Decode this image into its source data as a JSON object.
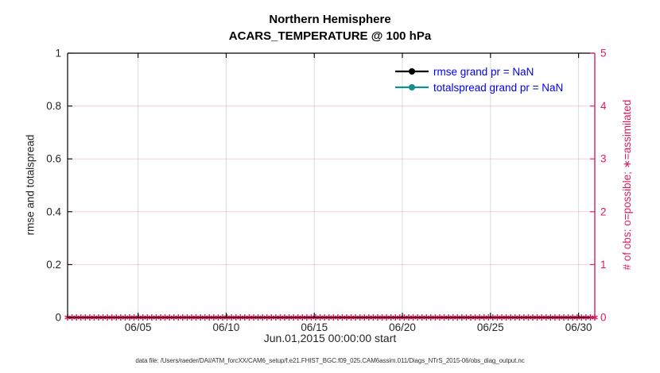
{
  "figure": {
    "title_line1": "Northern Hemisphere",
    "title_line2": "ACARS_TEMPERATURE @ 100 hPa",
    "xlabel": "Jun.01,2015 00:00:00 start",
    "ylabel_left": "rmse and totalspread",
    "ylabel_right": "# of obs: o=possible; ∗=assimilated",
    "caption": "data file: /Users/raeder/DAI/ATM_forcXX/CAM6_setup/f.e21.FHIST_BGC.f09_025.CAM6assim.011/Diags_NTrS_2015-06/obs_diag_output.nc"
  },
  "legend": {
    "text_color": "#0000EE",
    "entries": [
      {
        "label": "rmse grand pr = NaN",
        "color": "#000000",
        "marker": "filled-circle"
      },
      {
        "label": "totalspread grand pr = NaN",
        "color": "#148F8F",
        "marker": "filled-circle"
      }
    ]
  },
  "colors": {
    "right_axis_pink": "#D81F5E",
    "grid_gray": "#DBDBDB",
    "axis_black": "#000000",
    "tick_text": "#262626",
    "teal_series": "#148F8F",
    "legend_text_blue": "#0000EE"
  },
  "chart_data": {
    "type": "line",
    "title": "Northern Hemisphere",
    "subtitle": "ACARS_TEMPERATURE @ 100 hPa",
    "grid": true,
    "legend_position": "top-right-inside",
    "x_axis": {
      "label": "Jun.01,2015 00:00:00 start",
      "start": "Jun.01,2015 00:00:00",
      "range_days": [
        0,
        29.92
      ],
      "ticks": [
        {
          "day": 4,
          "label": "06/05"
        },
        {
          "day": 9,
          "label": "06/10"
        },
        {
          "day": 14,
          "label": "06/15"
        },
        {
          "day": 19,
          "label": "06/20"
        },
        {
          "day": 24,
          "label": "06/25"
        },
        {
          "day": 29,
          "label": "06/30"
        }
      ]
    },
    "y_left": {
      "label": "rmse and totalspread",
      "range": [
        0,
        1
      ],
      "ticks": [
        {
          "v": 0,
          "label": "0"
        },
        {
          "v": 0.2,
          "label": "0.2"
        },
        {
          "v": 0.4,
          "label": "0.4"
        },
        {
          "v": 0.6,
          "label": "0.6"
        },
        {
          "v": 0.8,
          "label": "0.8"
        },
        {
          "v": 1,
          "label": "1"
        }
      ]
    },
    "y_right": {
      "label": "# of obs: o=possible; ∗=assimilated",
      "range": [
        0,
        5
      ],
      "color": "#D81F5E",
      "ticks": [
        {
          "v": 0,
          "label": "0"
        },
        {
          "v": 1,
          "label": "1"
        },
        {
          "v": 2,
          "label": "2"
        },
        {
          "v": 3,
          "label": "3"
        },
        {
          "v": 4,
          "label": "4"
        },
        {
          "v": 5,
          "label": "5"
        }
      ]
    },
    "series": [
      {
        "name": "rmse",
        "axis": "left",
        "color": "#000000",
        "grand_pr": "NaN",
        "values_all_times": "NaN",
        "line_visible": false
      },
      {
        "name": "totalspread",
        "axis": "left",
        "color": "#148F8F",
        "grand_pr": "NaN",
        "values_all_times": "NaN",
        "line_visible": false
      },
      {
        "name": "obs assimilated count",
        "axis": "right",
        "color": "#D81F5E",
        "marker": "asterisk",
        "value_at_all_times": 0,
        "n_times": 120
      }
    ]
  }
}
